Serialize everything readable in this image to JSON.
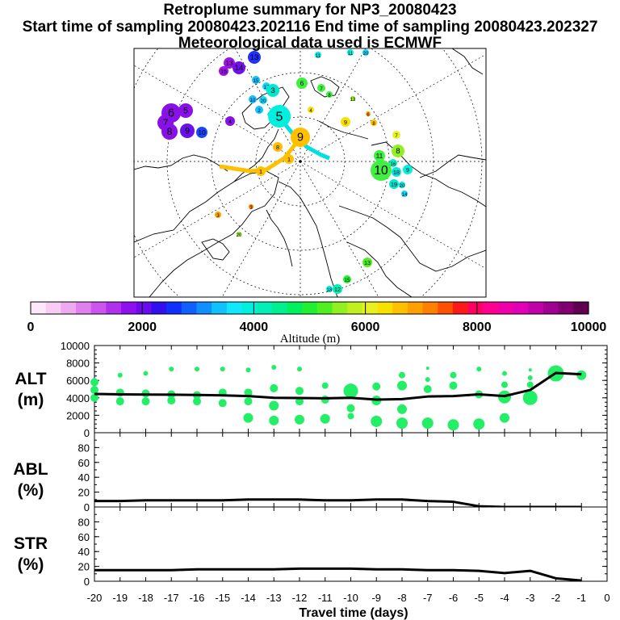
{
  "header": {
    "title": "Retroplume summary for NP3_20080423",
    "line2": "Start time of sampling 20080423.202116     End time of sampling 20080423.202327",
    "line3": "Meteorological data used is ECMWF"
  },
  "colors": {
    "plume_green": "#22ee66",
    "trend_line": "#000000",
    "track_yellow": "#ffc000",
    "track_cyan": "#00e0e0"
  },
  "chart_data": [
    {
      "type": "map",
      "title": "Retroplume summary for NP3_20080423",
      "projection": "north polar stereographic",
      "point_labels": [
        "1",
        "2",
        "3",
        "4",
        "5",
        "6",
        "7",
        "8",
        "9",
        "10",
        "11",
        "12",
        "13",
        "14",
        "15",
        "16",
        "17",
        "18",
        "19",
        "20"
      ]
    },
    {
      "type": "colorbar",
      "xlabel": "Altitude (m)",
      "range": [
        0,
        10000
      ],
      "tick_labels": [
        "0",
        "2000",
        "4000",
        "6000",
        "8000",
        "10000"
      ],
      "colors": [
        "#fde8fb",
        "#f7cdf5",
        "#eeaaee",
        "#e080ef",
        "#cc55ee",
        "#b030ee",
        "#8f10ee",
        "#6a0aee",
        "#3010ee",
        "#1030ff",
        "#1060ff",
        "#1090ff",
        "#10c0ff",
        "#10e8ff",
        "#00f0e0",
        "#00f0b8",
        "#00f090",
        "#00f060",
        "#20f030",
        "#50f020",
        "#90f020",
        "#c0f020",
        "#e8f020",
        "#f8e000",
        "#ffc000",
        "#ffa000",
        "#ff8000",
        "#ff5000",
        "#ff1818",
        "#ff0060",
        "#ff0090",
        "#f000a8",
        "#e000b8",
        "#c000a8",
        "#a00090",
        "#800070",
        "#600050"
      ]
    },
    {
      "type": "scatter",
      "panel": "ALT",
      "ylabel_lines": [
        "ALT",
        "(m)"
      ],
      "ylim": [
        0,
        10000
      ],
      "y_ticks": [
        "0",
        "2000",
        "4000",
        "6000",
        "8000",
        "10000"
      ],
      "x": [
        -20,
        -19,
        -18,
        -17,
        -16,
        -15,
        -14,
        -13,
        -12,
        -11,
        -10,
        -9,
        -8,
        -7,
        -6,
        -5,
        -4,
        -3,
        -2,
        -1
      ],
      "mean_line": [
        4450,
        4400,
        4380,
        4360,
        4330,
        4280,
        4200,
        4000,
        3980,
        3950,
        4000,
        3800,
        3850,
        4150,
        4200,
        4400,
        4200,
        4900,
        6850,
        6700
      ],
      "points": [
        {
          "x": -20,
          "y": 5800,
          "s": 5
        },
        {
          "x": -20,
          "y": 4900,
          "s": 5
        },
        {
          "x": -20,
          "y": 4000,
          "s": 5
        },
        {
          "x": -19,
          "y": 6600,
          "s": 3
        },
        {
          "x": -19,
          "y": 4600,
          "s": 5
        },
        {
          "x": -19,
          "y": 3600,
          "s": 5
        },
        {
          "x": -18,
          "y": 6800,
          "s": 3
        },
        {
          "x": -18,
          "y": 4500,
          "s": 5
        },
        {
          "x": -18,
          "y": 3600,
          "s": 5
        },
        {
          "x": -17,
          "y": 7300,
          "s": 3
        },
        {
          "x": -17,
          "y": 4400,
          "s": 5
        },
        {
          "x": -17,
          "y": 3700,
          "s": 5
        },
        {
          "x": -16,
          "y": 7300,
          "s": 3
        },
        {
          "x": -16,
          "y": 4300,
          "s": 5
        },
        {
          "x": -16,
          "y": 3600,
          "s": 5
        },
        {
          "x": -15,
          "y": 7300,
          "s": 3
        },
        {
          "x": -15,
          "y": 4600,
          "s": 5
        },
        {
          "x": -15,
          "y": 3400,
          "s": 5
        },
        {
          "x": -14,
          "y": 7200,
          "s": 3
        },
        {
          "x": -14,
          "y": 4600,
          "s": 5
        },
        {
          "x": -14,
          "y": 3600,
          "s": 5
        },
        {
          "x": -14,
          "y": 1700,
          "s": 6
        },
        {
          "x": -13,
          "y": 7500,
          "s": 3
        },
        {
          "x": -13,
          "y": 5100,
          "s": 5
        },
        {
          "x": -13,
          "y": 3100,
          "s": 6
        },
        {
          "x": -13,
          "y": 1400,
          "s": 6
        },
        {
          "x": -12,
          "y": 7300,
          "s": 3
        },
        {
          "x": -12,
          "y": 4800,
          "s": 5
        },
        {
          "x": -12,
          "y": 3600,
          "s": 5
        },
        {
          "x": -12,
          "y": 1500,
          "s": 6
        },
        {
          "x": -11,
          "y": 5400,
          "s": 4
        },
        {
          "x": -11,
          "y": 3800,
          "s": 5
        },
        {
          "x": -11,
          "y": 1600,
          "s": 6
        },
        {
          "x": -10,
          "y": 4800,
          "s": 9
        },
        {
          "x": -10,
          "y": 2800,
          "s": 5
        },
        {
          "x": -10,
          "y": 1900,
          "s": 4
        },
        {
          "x": -9,
          "y": 5300,
          "s": 5
        },
        {
          "x": -9,
          "y": 3700,
          "s": 6
        },
        {
          "x": -9,
          "y": 1300,
          "s": 7
        },
        {
          "x": -8,
          "y": 6600,
          "s": 4
        },
        {
          "x": -8,
          "y": 5400,
          "s": 6
        },
        {
          "x": -8,
          "y": 2700,
          "s": 6
        },
        {
          "x": -8,
          "y": 1100,
          "s": 7
        },
        {
          "x": -7,
          "y": 7400,
          "s": 2
        },
        {
          "x": -7,
          "y": 6100,
          "s": 3
        },
        {
          "x": -7,
          "y": 5000,
          "s": 5
        },
        {
          "x": -7,
          "y": 1100,
          "s": 7
        },
        {
          "x": -6,
          "y": 6600,
          "s": 4
        },
        {
          "x": -6,
          "y": 5400,
          "s": 5
        },
        {
          "x": -6,
          "y": 900,
          "s": 7
        },
        {
          "x": -5,
          "y": 7300,
          "s": 3
        },
        {
          "x": -5,
          "y": 4400,
          "s": 5
        },
        {
          "x": -5,
          "y": 1000,
          "s": 7
        },
        {
          "x": -4,
          "y": 6800,
          "s": 3
        },
        {
          "x": -4,
          "y": 5500,
          "s": 4
        },
        {
          "x": -4,
          "y": 4100,
          "s": 8
        },
        {
          "x": -4,
          "y": 1700,
          "s": 6
        },
        {
          "x": -3,
          "y": 7200,
          "s": 2
        },
        {
          "x": -3,
          "y": 6300,
          "s": 3
        },
        {
          "x": -3,
          "y": 5500,
          "s": 4
        },
        {
          "x": -3,
          "y": 4000,
          "s": 9
        },
        {
          "x": -2,
          "y": 6800,
          "s": 10
        },
        {
          "x": -1,
          "y": 6600,
          "s": 6
        }
      ]
    },
    {
      "type": "line",
      "panel": "ABL",
      "ylabel_lines": [
        "ABL",
        "(%)"
      ],
      "ylim": [
        0,
        100
      ],
      "y_ticks": [
        "0",
        "20",
        "40",
        "60",
        "80"
      ],
      "x": [
        -20,
        -19,
        -18,
        -17,
        -16,
        -15,
        -14,
        -13,
        -12,
        -11,
        -10,
        -9,
        -8,
        -7,
        -6,
        -5,
        -4,
        -3,
        -2,
        -1
      ],
      "y": [
        8,
        8,
        9,
        9,
        9,
        9,
        10,
        10,
        10,
        9,
        9,
        10,
        10,
        8,
        7,
        1,
        0,
        0,
        0,
        0
      ]
    },
    {
      "type": "line",
      "panel": "STR",
      "ylabel_lines": [
        "STR",
        "(%)"
      ],
      "ylim": [
        0,
        100
      ],
      "y_ticks": [
        "0",
        "20",
        "40",
        "60",
        "80"
      ],
      "xlabel": "Travel time (days)",
      "xlim": [
        -20,
        0
      ],
      "x_ticks": [
        "-20",
        "-19",
        "-18",
        "-17",
        "-16",
        "-15",
        "-14",
        "-13",
        "-12",
        "-11",
        "-10",
        "-9",
        "-8",
        "-7",
        "-6",
        "-5",
        "-4",
        "-3",
        "-2",
        "-1",
        "0"
      ],
      "x": [
        -20,
        -19,
        -18,
        -17,
        -16,
        -15,
        -14,
        -13,
        -12,
        -11,
        -10,
        -9,
        -8,
        -7,
        -6,
        -5,
        -4,
        -3,
        -2,
        -1
      ],
      "y": [
        15,
        15,
        15,
        15,
        16,
        16,
        16,
        16,
        17,
        17,
        17,
        16,
        16,
        15,
        15,
        14,
        11,
        14,
        4,
        1
      ]
    }
  ]
}
